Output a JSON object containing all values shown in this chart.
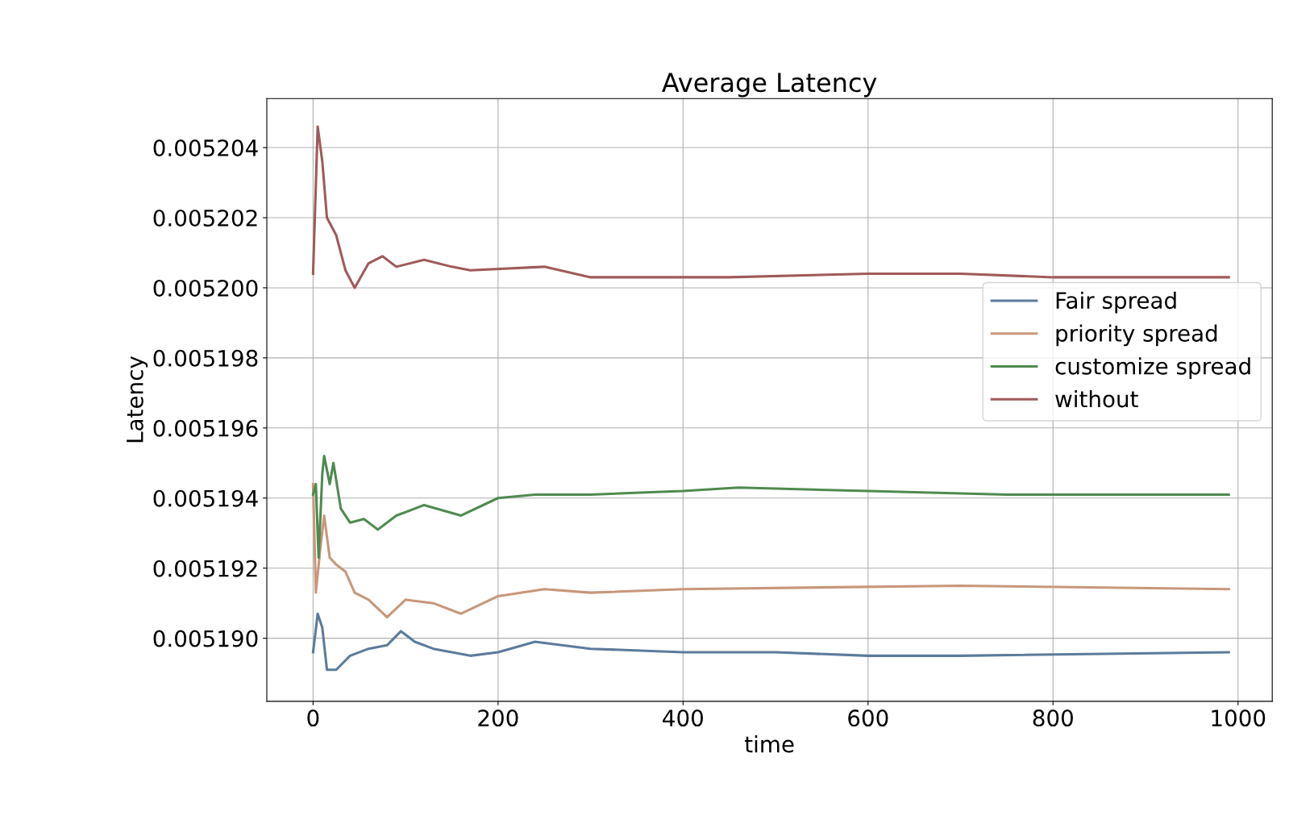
{
  "chart_data": {
    "type": "line",
    "title": "Average Latency",
    "xlabel": "time",
    "ylabel": "Latency",
    "xlim": [
      -50,
      1037
    ],
    "xticks": [
      0,
      200,
      400,
      600,
      800,
      1000
    ],
    "ylim": [
      0.0051882,
      0.0052054
    ],
    "yticks": [
      {
        "value": 0.00519,
        "label": "0.005190"
      },
      {
        "value": 0.005192,
        "label": "0.005192"
      },
      {
        "value": 0.005194,
        "label": "0.005194"
      },
      {
        "value": 0.005196,
        "label": "0.005196"
      },
      {
        "value": 0.005198,
        "label": "0.005198"
      },
      {
        "value": 0.0052,
        "label": "0.005200"
      },
      {
        "value": 0.005202,
        "label": "0.005202"
      },
      {
        "value": 0.005204,
        "label": "0.005204"
      }
    ],
    "grid": true,
    "legend": "right",
    "marker": "none",
    "line_style": "solid",
    "series": [
      {
        "name": "Fair spread",
        "color": "#5b7b9b",
        "x": [
          0,
          5,
          10,
          15,
          25,
          40,
          60,
          80,
          95,
          110,
          130,
          170,
          200,
          240,
          300,
          400,
          500,
          600,
          700,
          990
        ],
        "values": [
          0.0051896,
          0.0051907,
          0.0051903,
          0.0051891,
          0.0051891,
          0.0051895,
          0.0051897,
          0.0051898,
          0.0051902,
          0.0051899,
          0.0051897,
          0.0051895,
          0.0051896,
          0.0051899,
          0.0051897,
          0.0051896,
          0.0051896,
          0.0051895,
          0.0051895,
          0.0051896
        ]
      },
      {
        "name": "priority spread",
        "color": "#c8977a",
        "x": [
          0,
          3,
          8,
          12,
          18,
          25,
          35,
          45,
          60,
          80,
          100,
          130,
          160,
          200,
          250,
          300,
          400,
          700,
          990
        ],
        "values": [
          0.0051944,
          0.0051913,
          0.0051926,
          0.0051935,
          0.0051923,
          0.0051921,
          0.0051919,
          0.0051913,
          0.0051911,
          0.0051906,
          0.0051911,
          0.005191,
          0.0051907,
          0.0051912,
          0.0051914,
          0.0051913,
          0.0051914,
          0.0051915,
          0.0051914
        ]
      },
      {
        "name": "customize spread",
        "color": "#4f8a4f",
        "x": [
          0,
          3,
          6,
          10,
          12,
          18,
          22,
          30,
          40,
          55,
          70,
          90,
          120,
          160,
          200,
          240,
          300,
          400,
          460,
          600,
          750,
          990
        ],
        "values": [
          0.0051941,
          0.0051944,
          0.0051923,
          0.0051947,
          0.0051952,
          0.0051944,
          0.005195,
          0.0051937,
          0.0051933,
          0.0051934,
          0.0051931,
          0.0051935,
          0.0051938,
          0.0051935,
          0.005194,
          0.0051941,
          0.0051941,
          0.0051942,
          0.0051943,
          0.0051942,
          0.0051941,
          0.0051941
        ]
      },
      {
        "name": "without",
        "color": "#a05a5a",
        "x": [
          0,
          5,
          10,
          15,
          25,
          35,
          45,
          60,
          75,
          90,
          120,
          150,
          170,
          250,
          300,
          400,
          450,
          600,
          700,
          800,
          990
        ],
        "values": [
          0.0052004,
          0.0052046,
          0.0052036,
          0.005202,
          0.0052015,
          0.0052005,
          0.0052,
          0.0052007,
          0.0052009,
          0.0052006,
          0.0052008,
          0.0052006,
          0.0052005,
          0.0052006,
          0.0052003,
          0.0052003,
          0.0052003,
          0.0052004,
          0.0052004,
          0.0052003,
          0.0052003
        ]
      }
    ]
  }
}
